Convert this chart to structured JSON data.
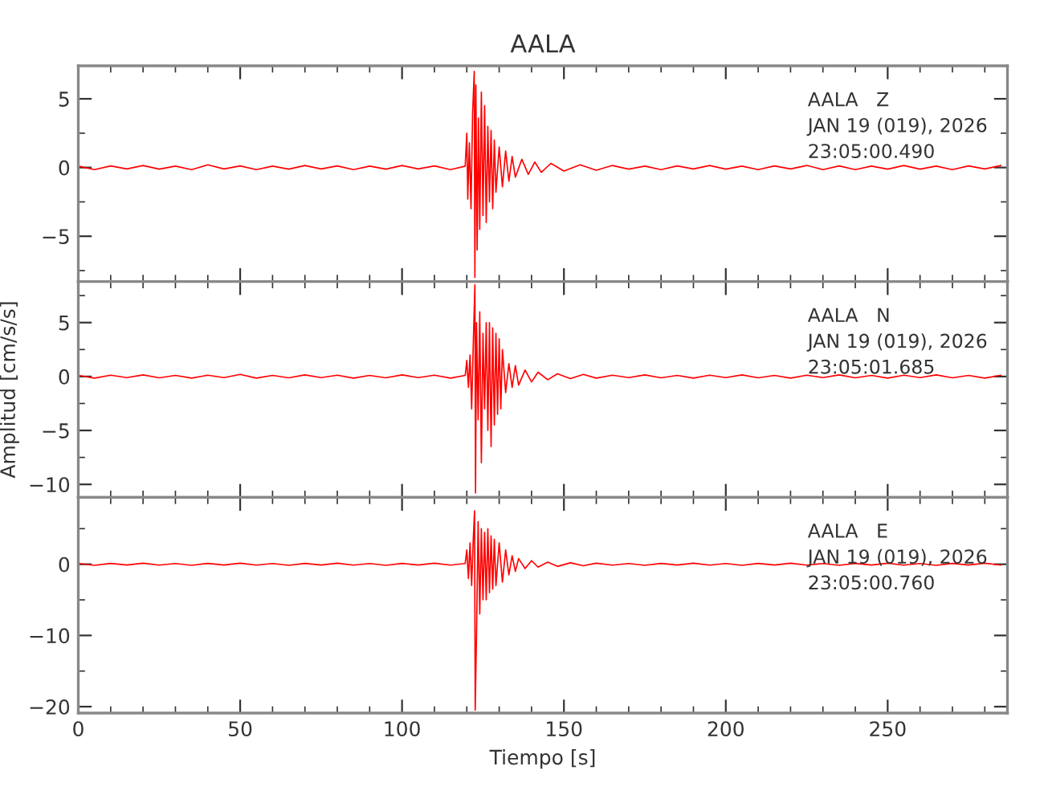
{
  "chart_data": [
    {
      "type": "line",
      "title": "AALA",
      "annotations": [
        "AALA   Z",
        "JAN 19 (019), 2026",
        "23:05:00.490"
      ],
      "xlim": [
        0,
        287
      ],
      "xticks": [
        0,
        50,
        100,
        150,
        200,
        250
      ],
      "ylim": [
        -8.3,
        7.4
      ],
      "yticks": [
        {
          "value": -5,
          "label": "−5"
        },
        0,
        5
      ],
      "tick_labels": "y",
      "grid": false,
      "legend": false,
      "series": [
        {
          "color": "#ff0000",
          "x": [
            0,
            5,
            10,
            15,
            20,
            25,
            30,
            35,
            40,
            45,
            50,
            55,
            60,
            65,
            70,
            75,
            80,
            85,
            90,
            95,
            100,
            105,
            110,
            115,
            119.5,
            120,
            120.3,
            120.8,
            121.3,
            121.8,
            122.3,
            122.5,
            122.8,
            123.2,
            123.6,
            124,
            124.5,
            125,
            125.5,
            126,
            126.5,
            127,
            127.5,
            128,
            128.5,
            129,
            130,
            131,
            132,
            133,
            134,
            135,
            137,
            139,
            141,
            143,
            146,
            150,
            155,
            160,
            165,
            170,
            175,
            180,
            185,
            190,
            195,
            200,
            205,
            210,
            215,
            220,
            225,
            230,
            235,
            240,
            245,
            250,
            255,
            260,
            265,
            270,
            275,
            280,
            285
          ],
          "values": [
            0.1,
            -0.15,
            0.12,
            -0.1,
            0.15,
            -0.12,
            0.1,
            -0.15,
            0.2,
            -0.1,
            0.12,
            -0.15,
            0.1,
            -0.12,
            0.15,
            -0.1,
            0.12,
            -0.15,
            0.1,
            -0.12,
            0.15,
            -0.1,
            0.12,
            -0.15,
            0.1,
            2.5,
            -2.3,
            1.8,
            -3,
            4,
            7,
            -8,
            6,
            -6,
            3.6,
            -4.5,
            5.5,
            -3.5,
            4.5,
            -4,
            3,
            -2.5,
            2.7,
            -3,
            2,
            -1.8,
            1.5,
            -1.4,
            1.2,
            -1,
            0.8,
            -0.7,
            0.6,
            -0.5,
            0.4,
            -0.35,
            0.3,
            -0.25,
            0.2,
            -0.2,
            0.15,
            -0.12,
            0.1,
            -0.15,
            0.12,
            -0.1,
            0.15,
            -0.12,
            0.1,
            -0.15,
            0.12,
            -0.1,
            0.15,
            -0.15,
            0.12,
            -0.15,
            0.1,
            -0.12,
            0.15,
            -0.12,
            0.1,
            -0.15,
            0.12,
            -0.1,
            0.15
          ]
        }
      ]
    },
    {
      "type": "line",
      "ylabel": "Amplitud [cm/s/s]",
      "annotations": [
        "AALA   N",
        "JAN 19 (019), 2026",
        "23:05:01.685"
      ],
      "xlim": [
        0,
        287
      ],
      "xticks": [
        0,
        50,
        100,
        150,
        200,
        250
      ],
      "ylim": [
        -11.2,
        8.8
      ],
      "yticks": [
        {
          "value": -10,
          "label": "−10"
        },
        {
          "value": -5,
          "label": "−5"
        },
        0,
        5
      ],
      "tick_labels": "y",
      "grid": false,
      "legend": false,
      "series": [
        {
          "color": "#ff0000",
          "x": [
            0,
            5,
            10,
            15,
            20,
            25,
            30,
            35,
            40,
            45,
            50,
            55,
            60,
            65,
            70,
            75,
            80,
            85,
            90,
            95,
            100,
            105,
            110,
            115,
            119.5,
            120,
            120.5,
            121,
            121.5,
            122,
            122.5,
            122.7,
            123,
            123.5,
            124,
            124.5,
            125,
            125.5,
            126,
            126.5,
            127,
            127.5,
            128,
            128.5,
            129,
            129.5,
            130,
            130.5,
            131,
            132,
            133,
            134,
            135,
            136,
            138,
            140,
            142,
            145,
            148,
            152,
            156,
            160,
            165,
            170,
            175,
            180,
            185,
            190,
            195,
            200,
            205,
            210,
            215,
            220,
            225,
            230,
            235,
            240,
            245,
            250,
            255,
            260,
            265,
            270,
            275,
            280,
            285
          ],
          "values": [
            0.1,
            -0.15,
            0.12,
            -0.1,
            0.15,
            -0.12,
            0.1,
            -0.15,
            0.12,
            -0.1,
            0.2,
            -0.15,
            0.1,
            -0.12,
            0.15,
            -0.1,
            0.12,
            -0.15,
            0.1,
            -0.12,
            0.15,
            -0.1,
            0.12,
            -0.15,
            0.1,
            1.5,
            -1,
            2,
            -3,
            3,
            8.5,
            -10.8,
            5,
            -4,
            6,
            -8,
            4,
            -3,
            5,
            -5,
            5,
            -6.5,
            4.5,
            -4.5,
            4,
            -3.5,
            3.5,
            -3,
            2.5,
            -1.5,
            1.2,
            -1,
            1,
            -0.8,
            0.6,
            -0.5,
            0.4,
            -0.3,
            0.25,
            -0.2,
            0.2,
            -0.15,
            0.12,
            -0.1,
            0.15,
            -0.12,
            0.1,
            -0.15,
            0.12,
            -0.1,
            0.15,
            -0.12,
            0.1,
            -0.15,
            0.12,
            -0.1,
            0.15,
            -0.12,
            0.1,
            -0.15,
            0.12,
            -0.1,
            0.15,
            -0.12,
            0.1,
            -0.15,
            0.12
          ]
        }
      ]
    },
    {
      "type": "line",
      "xlabel": "Tiempo [s]",
      "annotations": [
        "AALA   E",
        "JAN 19 (019), 2026",
        "23:05:00.760"
      ],
      "xlim": [
        0,
        287
      ],
      "xticks": [
        0,
        50,
        100,
        150,
        200,
        250
      ],
      "ylim": [
        -20.9,
        9.4
      ],
      "yticks": [
        {
          "value": -20,
          "label": "−20"
        },
        {
          "value": -10,
          "label": "−10"
        },
        0
      ],
      "grid": false,
      "legend": false,
      "series": [
        {
          "color": "#ff0000",
          "x": [
            0,
            5,
            10,
            15,
            20,
            25,
            30,
            35,
            40,
            45,
            50,
            55,
            60,
            65,
            70,
            75,
            80,
            85,
            90,
            95,
            100,
            105,
            110,
            115,
            119.5,
            120,
            120.5,
            121,
            121.5,
            122,
            122.4,
            122.6,
            123,
            123.5,
            124,
            124.5,
            125,
            125.5,
            126,
            126.5,
            127,
            127.5,
            128,
            128.5,
            129,
            130,
            131,
            132,
            133,
            134,
            135,
            136,
            138,
            140,
            142,
            145,
            148,
            152,
            156,
            160,
            165,
            170,
            175,
            180,
            185,
            190,
            195,
            200,
            205,
            210,
            215,
            220,
            225,
            230,
            235,
            240,
            245,
            250,
            255,
            260,
            265,
            270,
            275,
            280,
            285
          ],
          "values": [
            0.1,
            -0.15,
            0.12,
            -0.1,
            0.15,
            -0.12,
            0.1,
            -0.15,
            0.12,
            -0.1,
            0.15,
            -0.12,
            0.1,
            -0.15,
            0.12,
            -0.1,
            0.15,
            -0.12,
            0.1,
            -0.15,
            0.12,
            -0.1,
            0.15,
            -0.12,
            0.1,
            2,
            -2,
            3,
            -3,
            3.5,
            7.5,
            -20.5,
            -10,
            6,
            -7,
            5,
            -5,
            4.5,
            -5,
            5,
            -4,
            4,
            -3.5,
            3.5,
            -3,
            3,
            -2.5,
            2,
            -1.5,
            1.2,
            -1,
            0.8,
            -0.6,
            0.5,
            -0.4,
            0.3,
            -0.3,
            0.2,
            -0.2,
            0.15,
            -0.12,
            0.1,
            -0.15,
            0.12,
            -0.1,
            0.15,
            -0.12,
            0.1,
            -0.15,
            0.12,
            -0.1,
            0.15,
            -0.12,
            0.1,
            -0.15,
            0.12,
            -0.1,
            0.15,
            -0.12,
            0.1,
            -0.15,
            0.12,
            -0.1,
            0.15,
            -0.12
          ]
        }
      ]
    }
  ]
}
